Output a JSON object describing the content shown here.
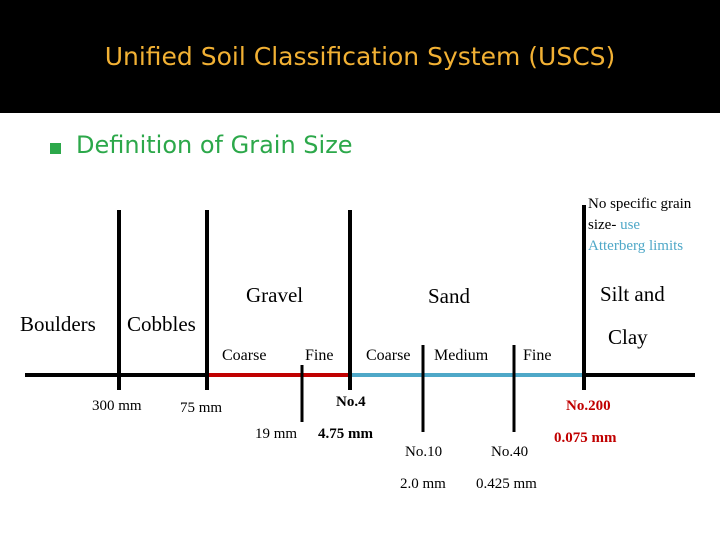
{
  "title": "Unified Soil Classification System (USCS)",
  "bullet_text": "Definition of Grain Size",
  "categories": {
    "boulders": "Boulders",
    "cobbles": "Cobbles",
    "gravel": "Gravel",
    "sand": "Sand",
    "silt_and": "Silt and",
    "clay": "Clay"
  },
  "subdivisions": {
    "gravel_coarse": "Coarse",
    "gravel_fine": "Fine",
    "sand_coarse": "Coarse",
    "sand_medium": "Medium",
    "sand_fine": "Fine"
  },
  "sizes": {
    "s300": "300 mm",
    "s75": "75 mm",
    "s19": "19 mm",
    "s475": "4.75 mm",
    "s20": "2.0 mm",
    "s0425": "0.425 mm",
    "s0075": "0.075 mm"
  },
  "sieves": {
    "no4": "No.4",
    "no10": "No.10",
    "no40": "No.40",
    "no200": "No.200"
  },
  "note": {
    "line1": "No specific grain",
    "line2_prefix": "size- ",
    "line2_link": "use",
    "line3": "Atterberg limits"
  },
  "colors": {
    "header_bg": "#000000",
    "title": "#f2b134",
    "bullet_text": "#2ca84a",
    "gravel_segment": "#c00000",
    "sand_segment": "#4fa8c8",
    "highlight_red": "#c00000"
  }
}
